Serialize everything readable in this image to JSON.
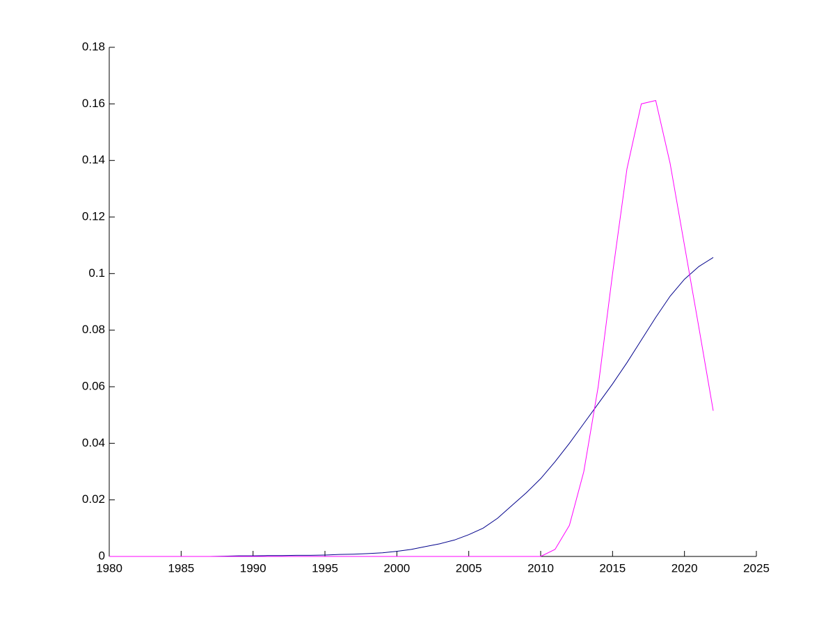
{
  "chart_data": {
    "type": "line",
    "x": [
      1980,
      1981,
      1982,
      1983,
      1984,
      1985,
      1986,
      1987,
      1988,
      1989,
      1990,
      1991,
      1992,
      1993,
      1994,
      1995,
      1996,
      1997,
      1998,
      1999,
      2000,
      2001,
      2002,
      2003,
      2004,
      2005,
      2006,
      2007,
      2008,
      2009,
      2010,
      2011,
      2012,
      2013,
      2014,
      2015,
      2016,
      2017,
      2018,
      2019,
      2020,
      2021,
      2022
    ],
    "series": [
      {
        "color": "#00008b",
        "values": [
          0,
          0,
          0,
          0,
          0,
          0,
          0,
          0,
          0.0001,
          0.0002,
          0.0002,
          0.0003,
          0.0003,
          0.0004,
          0.0004,
          0.0005,
          0.0007,
          0.0008,
          0.001,
          0.0013,
          0.0018,
          0.0025,
          0.0035,
          0.0045,
          0.0058,
          0.0077,
          0.01,
          0.0135,
          0.018,
          0.0225,
          0.0275,
          0.0335,
          0.04,
          0.047,
          0.054,
          0.061,
          0.0685,
          0.0765,
          0.0845,
          0.092,
          0.098,
          0.1025,
          0.1057
        ]
      },
      {
        "color": "#ff00ff",
        "values": [
          0,
          0,
          0,
          0,
          0,
          0,
          0,
          0,
          0,
          0,
          0,
          0,
          0,
          0,
          0,
          0,
          0,
          0,
          0,
          0,
          0,
          0,
          0,
          0,
          0,
          0,
          0,
          0,
          0,
          0,
          0,
          0.0025,
          0.011,
          0.03,
          0.06,
          0.1,
          0.137,
          0.16,
          0.1612,
          0.139,
          0.11,
          0.081,
          0.0515
        ]
      }
    ],
    "xlim": [
      1980,
      2025
    ],
    "xticks": [
      1980,
      1985,
      1990,
      1995,
      2000,
      2005,
      2010,
      2015,
      2020,
      2025
    ],
    "ylim": [
      0,
      0.18
    ],
    "yticks": [
      0,
      0.02,
      0.04,
      0.06,
      0.08,
      0.1,
      0.12,
      0.14,
      0.16,
      0.18
    ]
  }
}
